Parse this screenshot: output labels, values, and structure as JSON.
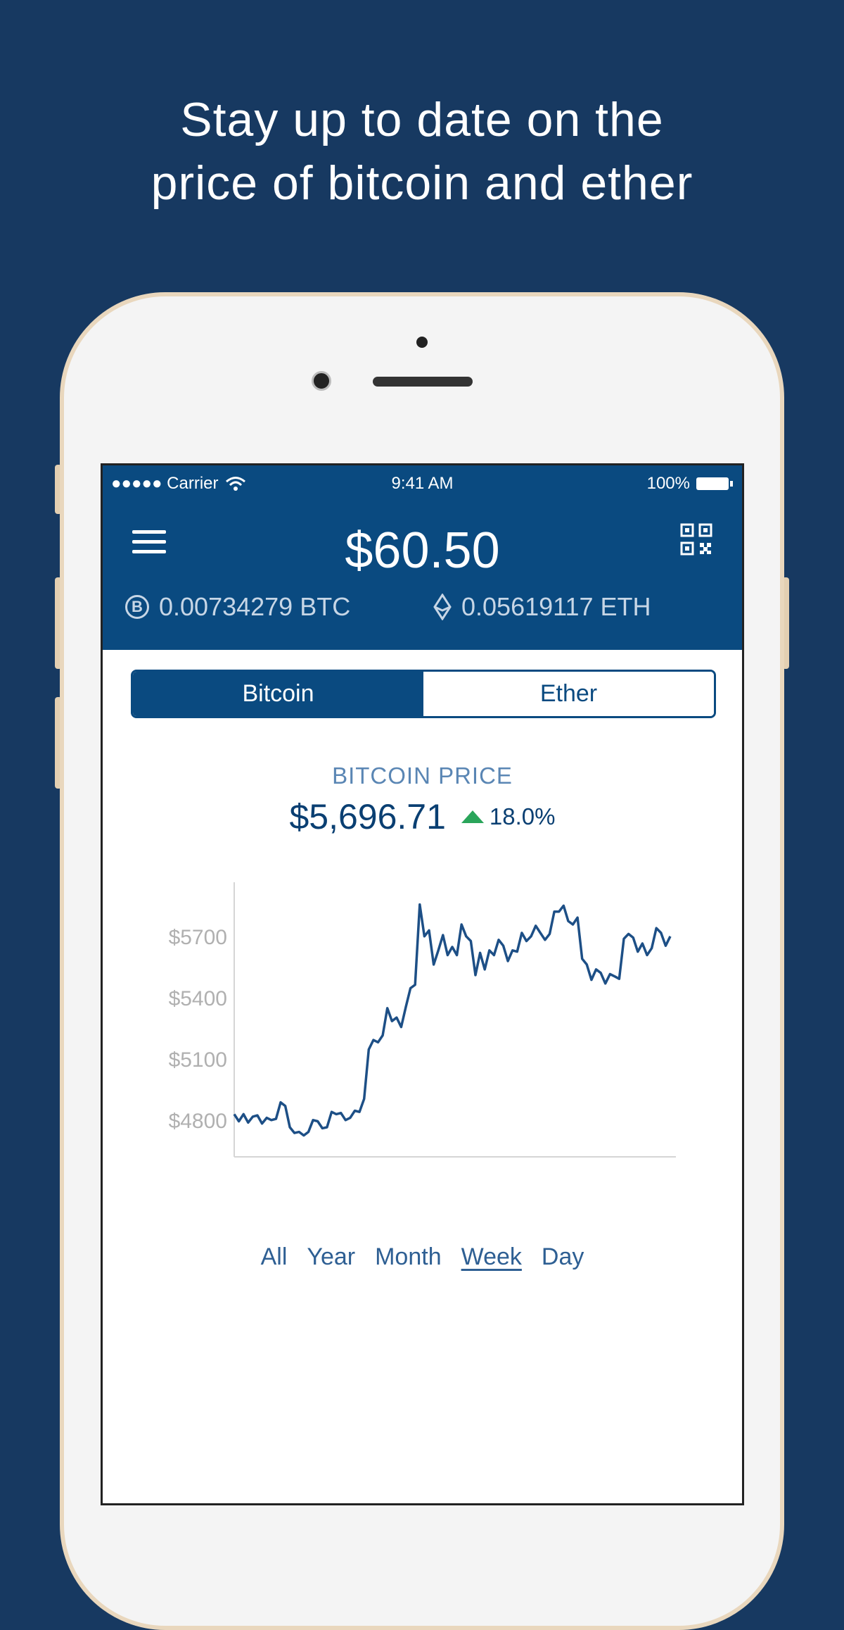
{
  "headline": [
    "Stay up to date on the",
    "price of bitcoin and ether"
  ],
  "status_bar": {
    "carrier": "●●●●● Carrier",
    "time": "9:41 AM",
    "battery": "100%"
  },
  "header": {
    "balance": "$60.50",
    "btc_amount": "0.00734279 BTC",
    "eth_amount": "0.05619117 ETH",
    "btc_symbol": "B",
    "icons": [
      "menu-icon",
      "qr-code-icon",
      "bitcoin-icon",
      "ether-icon",
      "wifi-icon",
      "battery-icon"
    ]
  },
  "tabs": [
    {
      "label": "Bitcoin",
      "active": true
    },
    {
      "label": "Ether",
      "active": false
    }
  ],
  "price_section": {
    "label": "BITCOIN PRICE",
    "price": "$5,696.71",
    "change": "18.0%",
    "direction": "up"
  },
  "ranges": [
    {
      "label": "All",
      "selected": false
    },
    {
      "label": "Year",
      "selected": false
    },
    {
      "label": "Month",
      "selected": false
    },
    {
      "label": "Week",
      "selected": true
    },
    {
      "label": "Day",
      "selected": false
    }
  ],
  "colors": {
    "background": "#173961",
    "header": "#0a4a80",
    "line": "#1d4f86",
    "up": "#2aa55a"
  },
  "chart_data": {
    "type": "line",
    "title": "",
    "xlabel": "",
    "ylabel": "",
    "y_ticks": [
      "$4800",
      "$5100",
      "$5400",
      "$5700"
    ],
    "y_tick_values": [
      4800,
      5100,
      5400,
      5700
    ],
    "ylim": [
      4620,
      5965
    ],
    "grid": false,
    "values": [
      4829,
      4794,
      4829,
      4788,
      4817,
      4823,
      4783,
      4811,
      4800,
      4806,
      4887,
      4869,
      4765,
      4737,
      4742,
      4725,
      4742,
      4800,
      4794,
      4760,
      4765,
      4840,
      4829,
      4835,
      4800,
      4811,
      4846,
      4840,
      4904,
      5146,
      5192,
      5181,
      5215,
      5348,
      5285,
      5302,
      5256,
      5354,
      5446,
      5463,
      5856,
      5700,
      5729,
      5562,
      5631,
      5706,
      5608,
      5648,
      5608,
      5758,
      5700,
      5677,
      5510,
      5619,
      5538,
      5631,
      5608,
      5683,
      5654,
      5579,
      5631,
      5625,
      5717,
      5677,
      5700,
      5752,
      5717,
      5683,
      5712,
      5821,
      5821,
      5850,
      5775,
      5758,
      5792,
      5590,
      5562,
      5487,
      5538,
      5521,
      5469,
      5515,
      5504,
      5492,
      5688,
      5712,
      5694,
      5625,
      5665,
      5608,
      5642,
      5740,
      5717,
      5654,
      5700
    ]
  }
}
